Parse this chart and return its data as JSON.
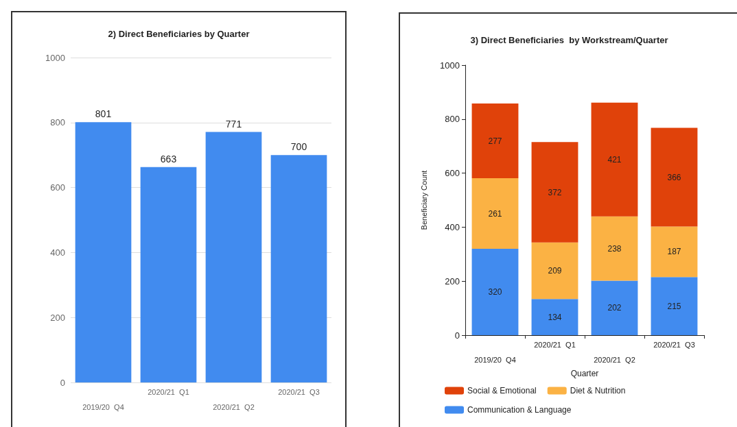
{
  "chart_data": [
    {
      "type": "bar",
      "title": "2) Direct Beneficiaries by Quarter",
      "categories": [
        "2019/20  Q4",
        "2020/21  Q1",
        "2020/21  Q2",
        "2020/21  Q3"
      ],
      "values": [
        801,
        663,
        771,
        700
      ],
      "color": "#418bef",
      "ylim": [
        0,
        1000
      ],
      "yticks": [
        0,
        200,
        400,
        600,
        800,
        1000
      ],
      "grid": "y",
      "data_labels": true
    },
    {
      "type": "bar",
      "title": "3) Direct Beneficiaries  by Workstream/Quarter",
      "xlabel": "Quarter",
      "ylabel": "Beneficiary Count",
      "categories": [
        "2019/20  Q4",
        "2020/21  Q1",
        "2020/21  Q2",
        "2020/21  Q3"
      ],
      "stacked": true,
      "series": [
        {
          "name": "Communication & Language",
          "color": "#418bef",
          "values": [
            320,
            134,
            202,
            215
          ]
        },
        {
          "name": "Diet & Nutrition",
          "color": "#fbb244",
          "values": [
            261,
            209,
            238,
            187
          ]
        },
        {
          "name": "Social & Emotional",
          "color": "#e0420a",
          "values": [
            277,
            372,
            421,
            366
          ]
        }
      ],
      "ylim": [
        0,
        1000
      ],
      "yticks": [
        0,
        200,
        400,
        600,
        800,
        1000
      ],
      "grid": false,
      "data_labels": true,
      "legend": "bottom"
    }
  ]
}
